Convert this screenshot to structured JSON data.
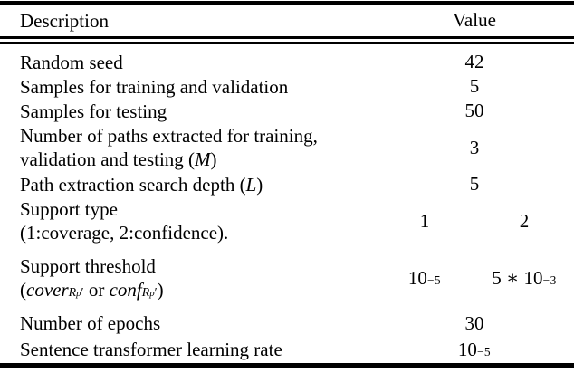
{
  "table": {
    "header": {
      "description": "Description",
      "value": "Value"
    },
    "rows": [
      {
        "desc": "Random seed",
        "value": "42"
      },
      {
        "desc": "Samples for training and validation",
        "value": "5"
      },
      {
        "desc": "Samples for testing",
        "value": "50"
      },
      {
        "line1": "Number of paths extracted for training,",
        "line2_pre": "validation and testing (",
        "line2_math": "M",
        "line2_post": ")",
        "value": "3"
      },
      {
        "pre": "Path extraction search depth (",
        "math": "L",
        "post": ")",
        "value": "5"
      },
      {
        "line1": "Support type",
        "line2": "(1:coverage, 2:confidence).",
        "value1": "1",
        "value2": "2"
      },
      {
        "line1": "Support threshold",
        "open": "(",
        "term1": "cover",
        "term1_sub": "R",
        "term1_subsub": "p",
        "term1_prime": "′",
        "sep": " or ",
        "term2": "conf",
        "term2_sub": "R",
        "term2_subsub": "p",
        "term2_prime": "′",
        "close": ")",
        "value1_base": "10",
        "value1_exp": "−5",
        "value2_base": "5 ∗ 10",
        "value2_exp": "−3"
      },
      {
        "desc": "Number of epochs",
        "value": "30"
      },
      {
        "desc": "Sentence transformer learning rate",
        "value_base": "10",
        "value_exp": "−5"
      }
    ]
  }
}
